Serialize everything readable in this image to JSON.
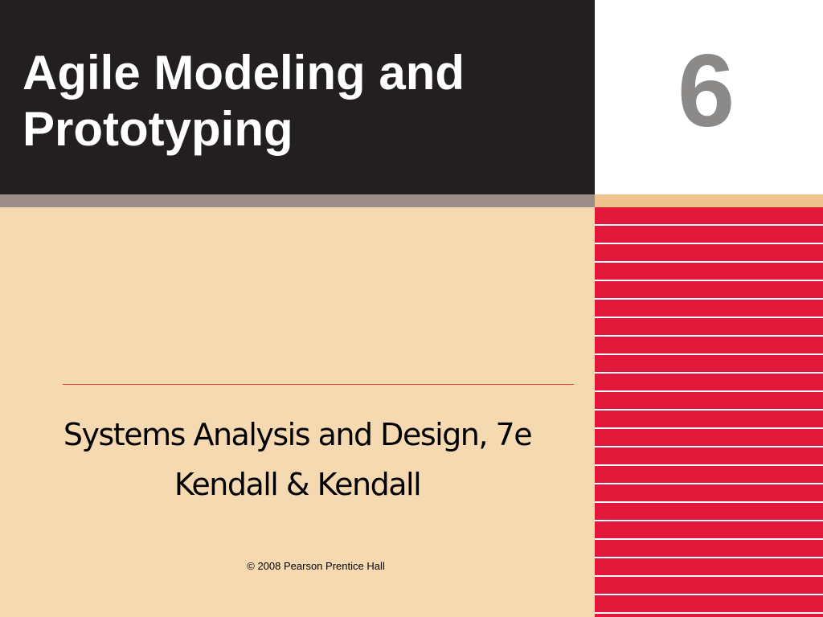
{
  "slide": {
    "title_line1": "Agile Modeling and",
    "title_line2": "Prototyping",
    "chapter_number": "6",
    "subtitle_line1": "Systems Analysis and Design, 7e",
    "subtitle_line2": "Kendall & Kendall",
    "copyright": "© 2008 Pearson Prentice Hall"
  },
  "colors": {
    "title_background": "#231f20",
    "title_text": "#ffffff",
    "chapter_number": "#8c8a89",
    "content_background": "#f5d9b0",
    "divider_band": "#9a8c88",
    "accent_band": "#efc38e",
    "stripe_red": "#e2183a",
    "rule_red": "#e64646"
  }
}
